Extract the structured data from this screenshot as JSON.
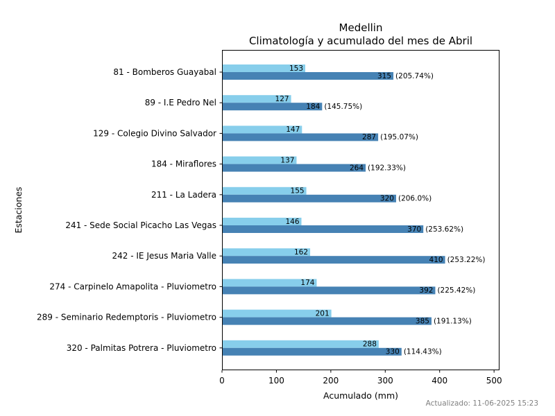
{
  "chart_data": {
    "type": "bar",
    "orientation": "horizontal",
    "title": "Medellin",
    "subtitle": "Climatología y acumulado del mes de Abril",
    "xlabel": "Acumulado (mm)",
    "ylabel": "Estaciones",
    "xlim": [
      0,
      510
    ],
    "xticks": [
      0,
      100,
      200,
      300,
      400,
      500
    ],
    "grid": false,
    "categories": [
      "81 - Bomberos Guayabal",
      "89 - I.E Pedro Nel",
      "129 - Colegio Divino Salvador",
      "184 - Miraflores",
      "211 - La Ladera",
      "241 - Sede Social Picacho Las Vegas",
      "242 - IE Jesus Maria Valle",
      "274 - Carpinelo Amapolita - Pluviometro",
      "289 - Seminario Redemptoris - Pluviometro",
      "320 - Palmitas Potrera - Pluviometro"
    ],
    "series": [
      {
        "color": "#87ceeb",
        "values": [
          153,
          127,
          147,
          137,
          155,
          146,
          162,
          174,
          201,
          288
        ]
      },
      {
        "color": "#4682b4",
        "values": [
          315,
          184,
          287,
          264,
          320,
          370,
          410,
          392,
          385,
          330
        ]
      }
    ],
    "percent_labels": [
      "(205.74%)",
      "(145.75%)",
      "(195.07%)",
      "(192.33%)",
      "(206.0%)",
      "(253.62%)",
      "(253.22%)",
      "(225.42%)",
      "(191.13%)",
      "(114.43%)"
    ]
  },
  "updated_text": "Actualizado: 11-06-2025 15:23"
}
